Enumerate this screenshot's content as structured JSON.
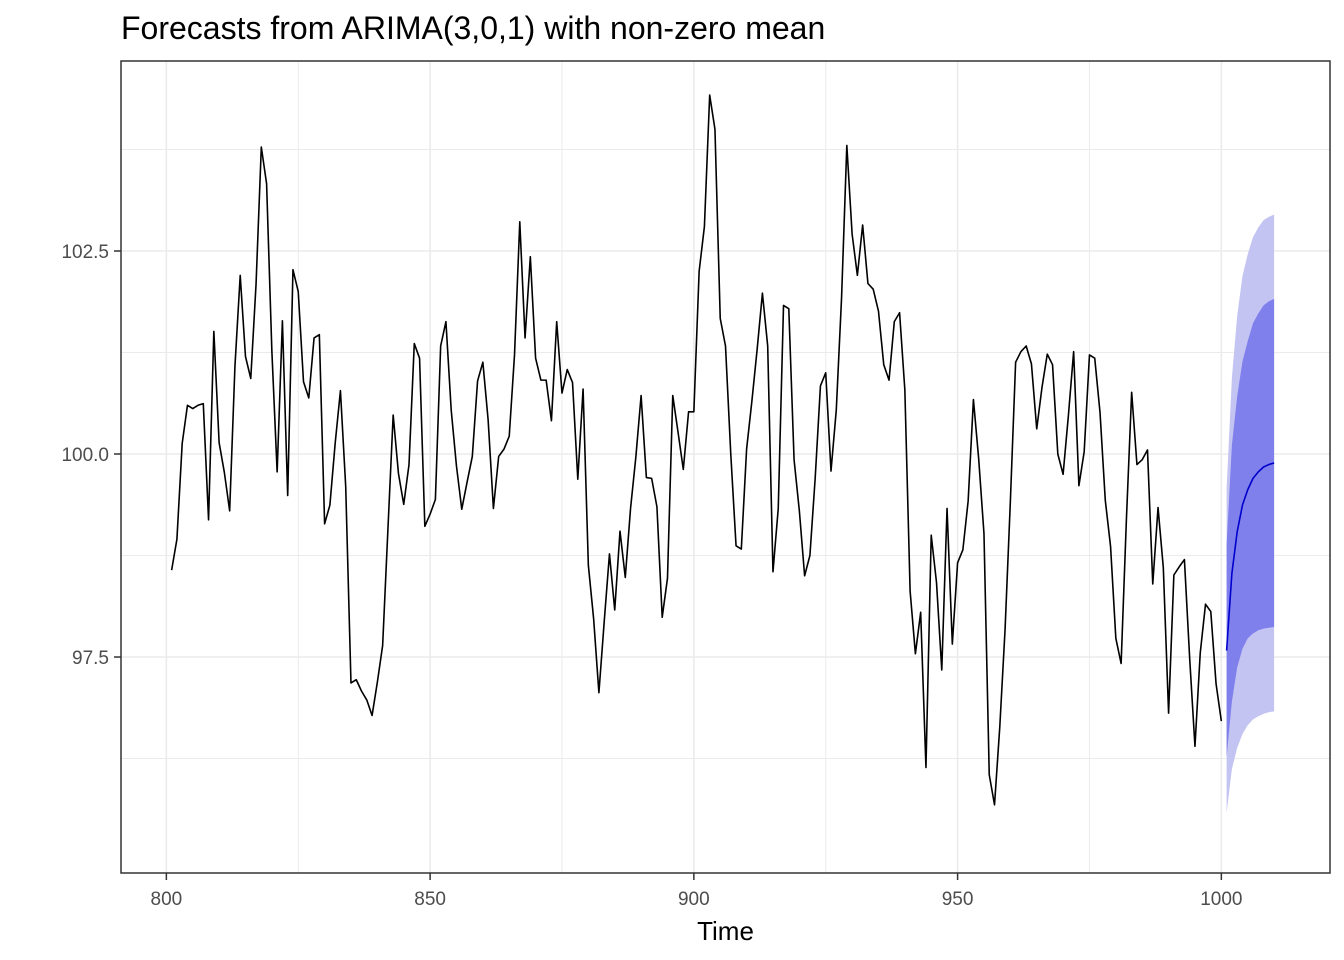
{
  "chart_data": {
    "type": "line",
    "title": "Forecasts from ARIMA(3,0,1) with non-zero mean",
    "xlabel": "Time",
    "ylabel": "",
    "xlim": [
      791.4,
      1020.6
    ],
    "ylim": [
      94.84,
      104.84
    ],
    "xticks": [
      800,
      850,
      900,
      950,
      1000
    ],
    "xtick_labels": [
      "800",
      "850",
      "900",
      "950",
      "1000"
    ],
    "yticks": [
      97.5,
      100.0,
      102.5
    ],
    "ytick_labels": [
      "97.5",
      "100.0",
      "102.5"
    ],
    "grid": true,
    "legend": "none",
    "colors": {
      "observed": "#000000",
      "forecast_mean": "#0000cc",
      "band_80": "#8080ec",
      "band_95": "#c4c4f3",
      "grid": "#ebebeb",
      "panel_border": "#333333"
    },
    "series": [
      {
        "role": "observed",
        "x_start": 801,
        "values": [
          98.57,
          98.95,
          100.13,
          100.6,
          100.56,
          100.6,
          100.62,
          99.19,
          101.51,
          100.14,
          99.77,
          99.3,
          101.08,
          102.2,
          101.2,
          100.93,
          102.09,
          103.78,
          103.33,
          101.27,
          99.78,
          101.64,
          99.49,
          102.27,
          102.0,
          100.89,
          100.69,
          101.43,
          101.47,
          99.14,
          99.37,
          100.13,
          100.78,
          99.6,
          97.18,
          97.22,
          97.08,
          96.97,
          96.78,
          97.19,
          97.64,
          99.07,
          100.48,
          99.76,
          99.38,
          99.87,
          101.36,
          101.18,
          99.11,
          99.26,
          99.44,
          101.33,
          101.63,
          100.54,
          99.85,
          99.32,
          99.65,
          99.97,
          100.9,
          101.13,
          100.42,
          99.33,
          99.97,
          100.06,
          100.22,
          101.22,
          102.86,
          101.43,
          102.43,
          101.18,
          100.91,
          100.91,
          100.41,
          101.63,
          100.75,
          101.04,
          100.88,
          99.69,
          100.8,
          98.63,
          97.97,
          97.06,
          97.93,
          98.77,
          98.08,
          99.05,
          98.48,
          99.33,
          99.96,
          100.72,
          99.71,
          99.7,
          99.35,
          97.99,
          98.47,
          100.72,
          100.27,
          99.81,
          100.52,
          100.52,
          102.25,
          102.8,
          104.42,
          104.0,
          101.67,
          101.33,
          100.0,
          98.87,
          98.83,
          100.06,
          100.65,
          101.29,
          101.98,
          101.33,
          98.55,
          99.33,
          101.83,
          101.79,
          99.93,
          99.3,
          98.5,
          98.75,
          99.7,
          100.84,
          101.0,
          99.79,
          100.54,
          101.92,
          103.8,
          102.71,
          102.2,
          102.82,
          102.1,
          102.03,
          101.76,
          101.1,
          100.91,
          101.63,
          101.74,
          100.79,
          98.31,
          97.54,
          98.05,
          96.14,
          99.0,
          98.42,
          97.34,
          99.33,
          97.66,
          98.66,
          98.82,
          99.42,
          100.67,
          99.94,
          99.02,
          96.05,
          95.68,
          96.64,
          97.84,
          99.41,
          101.13,
          101.26,
          101.33,
          101.11,
          100.31,
          100.82,
          101.23,
          101.1,
          100.0,
          99.75,
          100.47,
          101.26,
          99.61,
          100.03,
          101.22,
          101.18,
          100.51,
          99.43,
          98.86,
          97.73,
          97.42,
          99.19,
          100.76,
          99.87,
          99.93,
          100.05,
          98.4,
          99.34,
          98.6,
          96.81,
          98.51,
          98.61,
          98.7,
          97.48,
          96.4,
          97.55,
          98.15,
          98.06,
          97.17,
          96.71
        ]
      },
      {
        "role": "forecast",
        "x_start": 1001,
        "mean": [
          97.58,
          98.53,
          99.04,
          99.37,
          99.56,
          99.7,
          99.78,
          99.84,
          99.87,
          99.89
        ],
        "lo80": [
          96.27,
          96.95,
          97.37,
          97.6,
          97.73,
          97.79,
          97.83,
          97.85,
          97.86,
          97.87
        ],
        "hi80": [
          98.89,
          100.11,
          100.71,
          101.14,
          101.39,
          101.61,
          101.73,
          101.83,
          101.88,
          101.91
        ],
        "lo95": [
          95.58,
          96.12,
          96.38,
          96.55,
          96.66,
          96.73,
          96.77,
          96.8,
          96.82,
          96.83
        ],
        "hi95": [
          99.58,
          100.94,
          101.7,
          102.19,
          102.46,
          102.67,
          102.79,
          102.88,
          102.92,
          102.95
        ]
      }
    ]
  }
}
